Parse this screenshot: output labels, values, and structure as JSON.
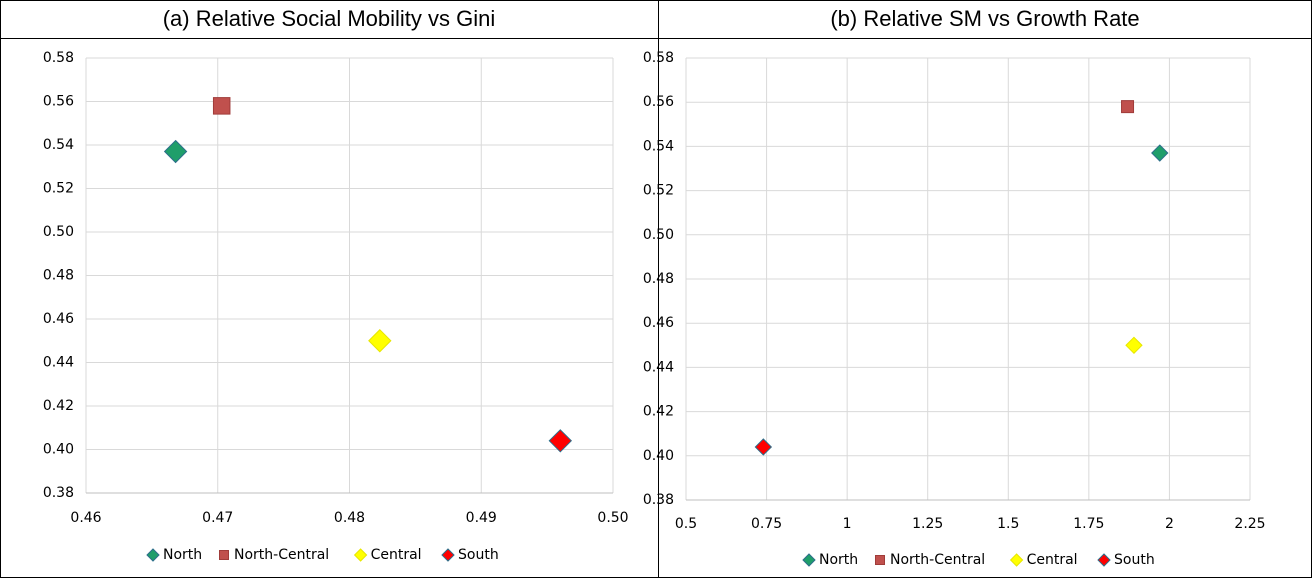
{
  "chart_data": [
    {
      "type": "scatter",
      "title": "(a)  Relative Social Mobility vs Gini",
      "xlim": [
        0.46,
        0.5
      ],
      "xticks": [
        0.46,
        0.47,
        0.48,
        0.49,
        {
          "value": 0.5,
          "label": "0.50"
        }
      ],
      "ylim": [
        0.38,
        0.58
      ],
      "yticks": [
        0.38,
        {
          "value": 0.4,
          "label": "0.40"
        },
        0.42,
        0.44,
        0.46,
        0.48,
        {
          "value": 0.5,
          "label": "0.50"
        },
        0.52,
        0.54,
        0.56,
        0.58
      ],
      "grid": true,
      "legend": "bottom",
      "series": [
        {
          "name": "North",
          "color": "#1f9e6a",
          "marker": "diamond",
          "x": [
            0.4668
          ],
          "values": [
            0.537
          ]
        },
        {
          "name": "North-Central",
          "color": "#c0504d",
          "marker": "square",
          "x": [
            0.4703
          ],
          "values": [
            0.558
          ]
        },
        {
          "name": "Central",
          "color": "#ffff00",
          "marker": "diamond",
          "x": [
            0.4823
          ],
          "values": [
            0.45
          ]
        },
        {
          "name": "South",
          "color": "#ff0000",
          "marker": "diamond",
          "x": [
            0.496
          ],
          "values": [
            0.404
          ]
        }
      ]
    },
    {
      "type": "scatter",
      "title": "(b)  Relative SM vs Growth Rate",
      "xlim": [
        0.5,
        2.25
      ],
      "xticks": [
        0.5,
        0.75,
        1,
        1.25,
        1.5,
        1.75,
        2,
        2.25
      ],
      "ylim": [
        0.38,
        0.58
      ],
      "yticks": [
        0.38,
        {
          "value": 0.4,
          "label": "0.40"
        },
        0.42,
        0.44,
        0.46,
        0.48,
        {
          "value": 0.5,
          "label": "0.50"
        },
        0.52,
        0.54,
        0.56,
        0.58
      ],
      "grid": true,
      "legend": "bottom",
      "series": [
        {
          "name": "North",
          "color": "#1f9e6a",
          "marker": "diamond",
          "x": [
            1.97
          ],
          "values": [
            0.537
          ]
        },
        {
          "name": "North-Central",
          "color": "#c0504d",
          "marker": "square",
          "x": [
            1.87
          ],
          "values": [
            0.558
          ]
        },
        {
          "name": "Central",
          "color": "#ffff00",
          "marker": "diamond",
          "x": [
            1.89
          ],
          "values": [
            0.45
          ]
        },
        {
          "name": "South",
          "color": "#ff0000",
          "marker": "diamond",
          "x": [
            0.74
          ],
          "values": [
            0.404
          ]
        }
      ]
    }
  ]
}
